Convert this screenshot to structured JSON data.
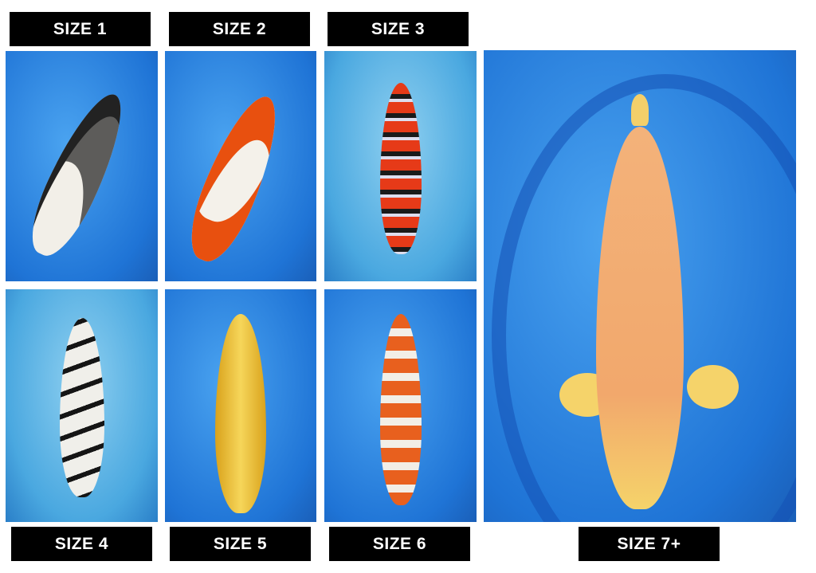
{
  "labels": {
    "size1": "SIZE 1",
    "size2": "SIZE 2",
    "size3": "SIZE 3",
    "size4": "SIZE 4",
    "size5": "SIZE 5",
    "size6": "SIZE 6",
    "size7": "SIZE 7+"
  },
  "photos": [
    {
      "id": "size1",
      "fish": "white-black koi",
      "colors": [
        "#f2efe8",
        "#1b1b1b"
      ]
    },
    {
      "id": "size2",
      "fish": "white-orange koi",
      "colors": [
        "#f4f1ea",
        "#e8500f"
      ]
    },
    {
      "id": "size3",
      "fish": "red-black scaled koi",
      "colors": [
        "#e63a18",
        "#1a1a1a"
      ]
    },
    {
      "id": "size4",
      "fish": "white-black koi",
      "colors": [
        "#f0efea",
        "#151515"
      ]
    },
    {
      "id": "size5",
      "fish": "gold koi",
      "colors": [
        "#f1c33a",
        "#d9a21c"
      ]
    },
    {
      "id": "size6",
      "fish": "orange-white scaled koi",
      "colors": [
        "#e8601e",
        "#f2eee6"
      ]
    },
    {
      "id": "size7",
      "fish": "orange-gold koi",
      "colors": [
        "#f3b27a",
        "#f5d36a"
      ]
    }
  ]
}
